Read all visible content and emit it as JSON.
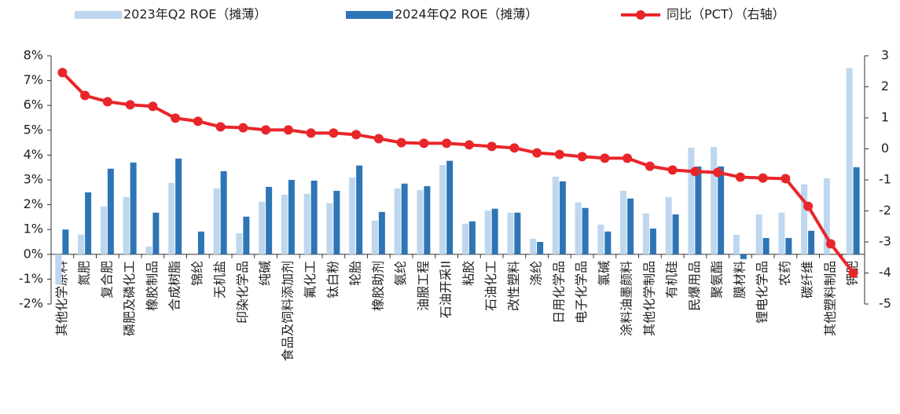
{
  "chart_data": {
    "type": "bar",
    "categories": [
      "其他化学原料",
      "氮肥",
      "复合肥",
      "磷肥及磷化工",
      "橡胶制品",
      "合成树脂",
      "锦纶",
      "无机盐",
      "印染化学品",
      "纯碱",
      "食品及饲料添加剂",
      "氟化工",
      "钛白粉",
      "轮胎",
      "橡胶助剂",
      "氨纶",
      "油服工程",
      "石油开采II",
      "粘胶",
      "石油化工",
      "改性塑料",
      "涤纶",
      "日用化学品",
      "电子化学品",
      "氯碱",
      "涂料油墨颜料",
      "其他化学制品",
      "有机硅",
      "民爆用品",
      "聚氨酯",
      "膜材料",
      "锂电化学品",
      "农药",
      "碳纤维",
      "其他塑料制品",
      "钾肥"
    ],
    "series": [
      {
        "name": "2023年Q2 ROE（摊薄）",
        "type": "bar",
        "color": "#bdd7ee",
        "values": [
          -1.2,
          0.8,
          1.93,
          2.31,
          0.32,
          2.88,
          0,
          2.66,
          0.85,
          2.12,
          2.4,
          2.44,
          2.06,
          3.1,
          1.36,
          2.66,
          2.59,
          3.6,
          1.23,
          1.77,
          1.68,
          0.63,
          3.13,
          2.09,
          1.2,
          2.56,
          1.65,
          2.31,
          4.3,
          4.33,
          0.79,
          1.61,
          1.68,
          2.82,
          3.07,
          7.5
        ]
      },
      {
        "name": "2024年Q2 ROE（摊薄）",
        "type": "bar",
        "color": "#2e75b6",
        "values": [
          1.0,
          2.5,
          3.45,
          3.7,
          1.68,
          3.86,
          0.92,
          3.35,
          1.52,
          2.72,
          3.0,
          2.97,
          2.56,
          3.58,
          1.71,
          2.85,
          2.75,
          3.77,
          1.33,
          1.84,
          1.68,
          0.5,
          2.94,
          1.87,
          0.92,
          2.25,
          1.04,
          1.61,
          3.54,
          3.54,
          -0.19,
          0.66,
          0.66,
          0.95,
          0,
          3.51
        ]
      },
      {
        "name": "同比（PCT）（右轴）",
        "type": "line",
        "axis": "y2",
        "color": "#e8262a",
        "values": [
          2.46,
          1.72,
          1.52,
          1.42,
          1.37,
          0.99,
          0.89,
          0.71,
          0.68,
          0.61,
          0.61,
          0.51,
          0.51,
          0.46,
          0.33,
          0.2,
          0.18,
          0.18,
          0.13,
          0.08,
          0.03,
          -0.13,
          -0.18,
          -0.25,
          -0.3,
          -0.3,
          -0.56,
          -0.68,
          -0.73,
          -0.76,
          -0.91,
          -0.94,
          -0.96,
          -1.85,
          -3.06,
          -4.0
        ]
      }
    ],
    "ylim": [
      -2,
      8
    ],
    "yticks": [
      {
        "value": -2,
        "label": "-2%"
      },
      {
        "value": -1,
        "label": "-1%"
      },
      {
        "value": 0,
        "label": "0%"
      },
      {
        "value": 1,
        "label": "1%"
      },
      {
        "value": 2,
        "label": "2%"
      },
      {
        "value": 3,
        "label": "3%"
      },
      {
        "value": 4,
        "label": "4%"
      },
      {
        "value": 5,
        "label": "5%"
      },
      {
        "value": 6,
        "label": "6%"
      },
      {
        "value": 7,
        "label": "7%"
      },
      {
        "value": 8,
        "label": "8%"
      }
    ],
    "y2lim": [
      -5,
      3
    ],
    "y2ticks": [
      -5,
      -4,
      -3,
      -2,
      -1,
      0,
      1,
      2,
      3
    ],
    "grid": false,
    "legend": "top"
  }
}
